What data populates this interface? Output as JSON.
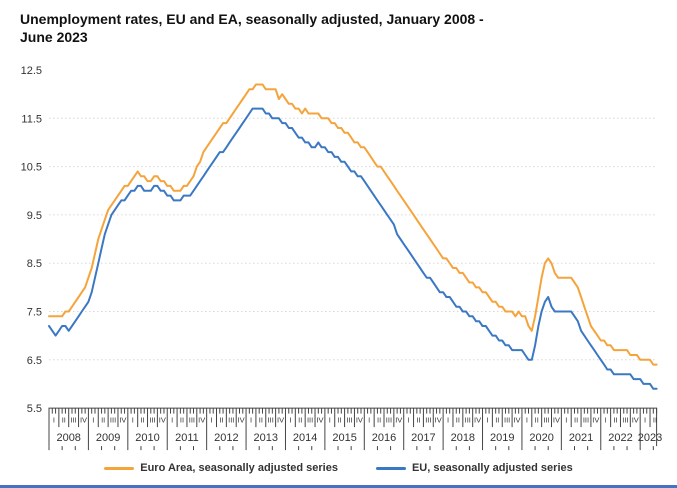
{
  "title_lines": [
    "Unemployment rates, EU and EA, seasonally adjusted, January 2008 -",
    "June 2023"
  ],
  "colors": {
    "euro_area_line": "#F5A43C",
    "eu_line": "#3B78C3",
    "gridline": "#d9d9d9",
    "axis": "#444444",
    "text": "#333333",
    "footer_bar": "#4472C4"
  },
  "chart_data": {
    "type": "line",
    "title": "Unemployment rates, EU and EA, seasonally adjusted, January 2008 - June 2023",
    "x_frequency": "monthly",
    "x_start": "2008-01",
    "x_end": "2023-06",
    "years": [
      "2008",
      "2009",
      "2010",
      "2011",
      "2012",
      "2013",
      "2014",
      "2015",
      "2016",
      "2017",
      "2018",
      "2019",
      "2020",
      "2021",
      "2022",
      "2023"
    ],
    "quarter_labels": [
      "I",
      "II",
      "III",
      "IV"
    ],
    "ylabel": "",
    "xlabel": "",
    "ylim": [
      5.5,
      12.5
    ],
    "y_ticks": [
      5.5,
      6.5,
      7.5,
      8.5,
      9.5,
      10.5,
      11.5,
      12.5
    ],
    "grid": "dotted horizontal, 6.5 to 11.5",
    "legend_position": "bottom",
    "series": [
      {
        "name": "Euro Area, seasonally adjusted series",
        "color": "#F5A43C",
        "values": [
          7.4,
          7.4,
          7.4,
          7.4,
          7.4,
          7.5,
          7.5,
          7.6,
          7.7,
          7.8,
          7.9,
          8.0,
          8.2,
          8.4,
          8.7,
          9.0,
          9.2,
          9.4,
          9.6,
          9.7,
          9.8,
          9.9,
          10.0,
          10.1,
          10.1,
          10.2,
          10.3,
          10.4,
          10.3,
          10.3,
          10.2,
          10.2,
          10.3,
          10.3,
          10.2,
          10.2,
          10.1,
          10.1,
          10.0,
          10.0,
          10.0,
          10.1,
          10.1,
          10.2,
          10.3,
          10.5,
          10.6,
          10.8,
          10.9,
          11.0,
          11.1,
          11.2,
          11.3,
          11.4,
          11.4,
          11.5,
          11.6,
          11.7,
          11.8,
          11.9,
          12.0,
          12.1,
          12.1,
          12.2,
          12.2,
          12.2,
          12.1,
          12.1,
          12.1,
          12.1,
          11.9,
          12.0,
          11.9,
          11.8,
          11.8,
          11.7,
          11.7,
          11.6,
          11.7,
          11.6,
          11.6,
          11.6,
          11.6,
          11.5,
          11.5,
          11.5,
          11.4,
          11.4,
          11.3,
          11.3,
          11.2,
          11.2,
          11.1,
          11.0,
          11.0,
          10.9,
          10.9,
          10.8,
          10.7,
          10.6,
          10.5,
          10.5,
          10.4,
          10.3,
          10.2,
          10.1,
          10.0,
          9.9,
          9.8,
          9.7,
          9.6,
          9.5,
          9.4,
          9.3,
          9.2,
          9.1,
          9.0,
          8.9,
          8.8,
          8.7,
          8.6,
          8.6,
          8.5,
          8.4,
          8.4,
          8.3,
          8.3,
          8.2,
          8.1,
          8.1,
          8.0,
          8.0,
          7.9,
          7.9,
          7.8,
          7.7,
          7.7,
          7.6,
          7.6,
          7.5,
          7.5,
          7.5,
          7.4,
          7.5,
          7.4,
          7.4,
          7.2,
          7.1,
          7.4,
          7.8,
          8.2,
          8.5,
          8.6,
          8.5,
          8.3,
          8.2,
          8.2,
          8.2,
          8.2,
          8.2,
          8.1,
          8.0,
          7.8,
          7.6,
          7.4,
          7.2,
          7.1,
          7.0,
          6.9,
          6.9,
          6.8,
          6.8,
          6.7,
          6.7,
          6.7,
          6.7,
          6.7,
          6.6,
          6.6,
          6.6,
          6.5,
          6.5,
          6.5,
          6.5,
          6.4,
          6.4
        ]
      },
      {
        "name": "EU, seasonally adjusted series",
        "color": "#3B78C3",
        "values": [
          7.2,
          7.1,
          7.0,
          7.1,
          7.2,
          7.2,
          7.1,
          7.2,
          7.3,
          7.4,
          7.5,
          7.6,
          7.7,
          7.9,
          8.2,
          8.5,
          8.8,
          9.1,
          9.3,
          9.5,
          9.6,
          9.7,
          9.8,
          9.8,
          9.9,
          10.0,
          10.0,
          10.1,
          10.1,
          10.0,
          10.0,
          10.0,
          10.1,
          10.1,
          10.0,
          10.0,
          9.9,
          9.9,
          9.8,
          9.8,
          9.8,
          9.9,
          9.9,
          9.9,
          10.0,
          10.1,
          10.2,
          10.3,
          10.4,
          10.5,
          10.6,
          10.7,
          10.8,
          10.8,
          10.9,
          11.0,
          11.1,
          11.2,
          11.3,
          11.4,
          11.5,
          11.6,
          11.7,
          11.7,
          11.7,
          11.7,
          11.6,
          11.6,
          11.5,
          11.5,
          11.5,
          11.4,
          11.4,
          11.3,
          11.3,
          11.2,
          11.1,
          11.1,
          11.0,
          11.0,
          10.9,
          10.9,
          11.0,
          10.9,
          10.9,
          10.8,
          10.8,
          10.7,
          10.7,
          10.6,
          10.6,
          10.5,
          10.4,
          10.4,
          10.3,
          10.3,
          10.2,
          10.1,
          10.0,
          9.9,
          9.8,
          9.7,
          9.6,
          9.5,
          9.4,
          9.3,
          9.1,
          9.0,
          8.9,
          8.8,
          8.7,
          8.6,
          8.5,
          8.4,
          8.3,
          8.2,
          8.2,
          8.1,
          8.0,
          7.9,
          7.9,
          7.8,
          7.8,
          7.7,
          7.6,
          7.6,
          7.5,
          7.5,
          7.4,
          7.4,
          7.3,
          7.3,
          7.2,
          7.2,
          7.1,
          7.0,
          7.0,
          6.9,
          6.9,
          6.8,
          6.8,
          6.7,
          6.7,
          6.7,
          6.7,
          6.6,
          6.5,
          6.5,
          6.8,
          7.2,
          7.5,
          7.7,
          7.8,
          7.6,
          7.5,
          7.5,
          7.5,
          7.5,
          7.5,
          7.5,
          7.4,
          7.3,
          7.1,
          7.0,
          6.9,
          6.8,
          6.7,
          6.6,
          6.5,
          6.4,
          6.3,
          6.3,
          6.2,
          6.2,
          6.2,
          6.2,
          6.2,
          6.2,
          6.1,
          6.1,
          6.1,
          6.0,
          6.0,
          6.0,
          5.9,
          5.9
        ]
      }
    ]
  }
}
